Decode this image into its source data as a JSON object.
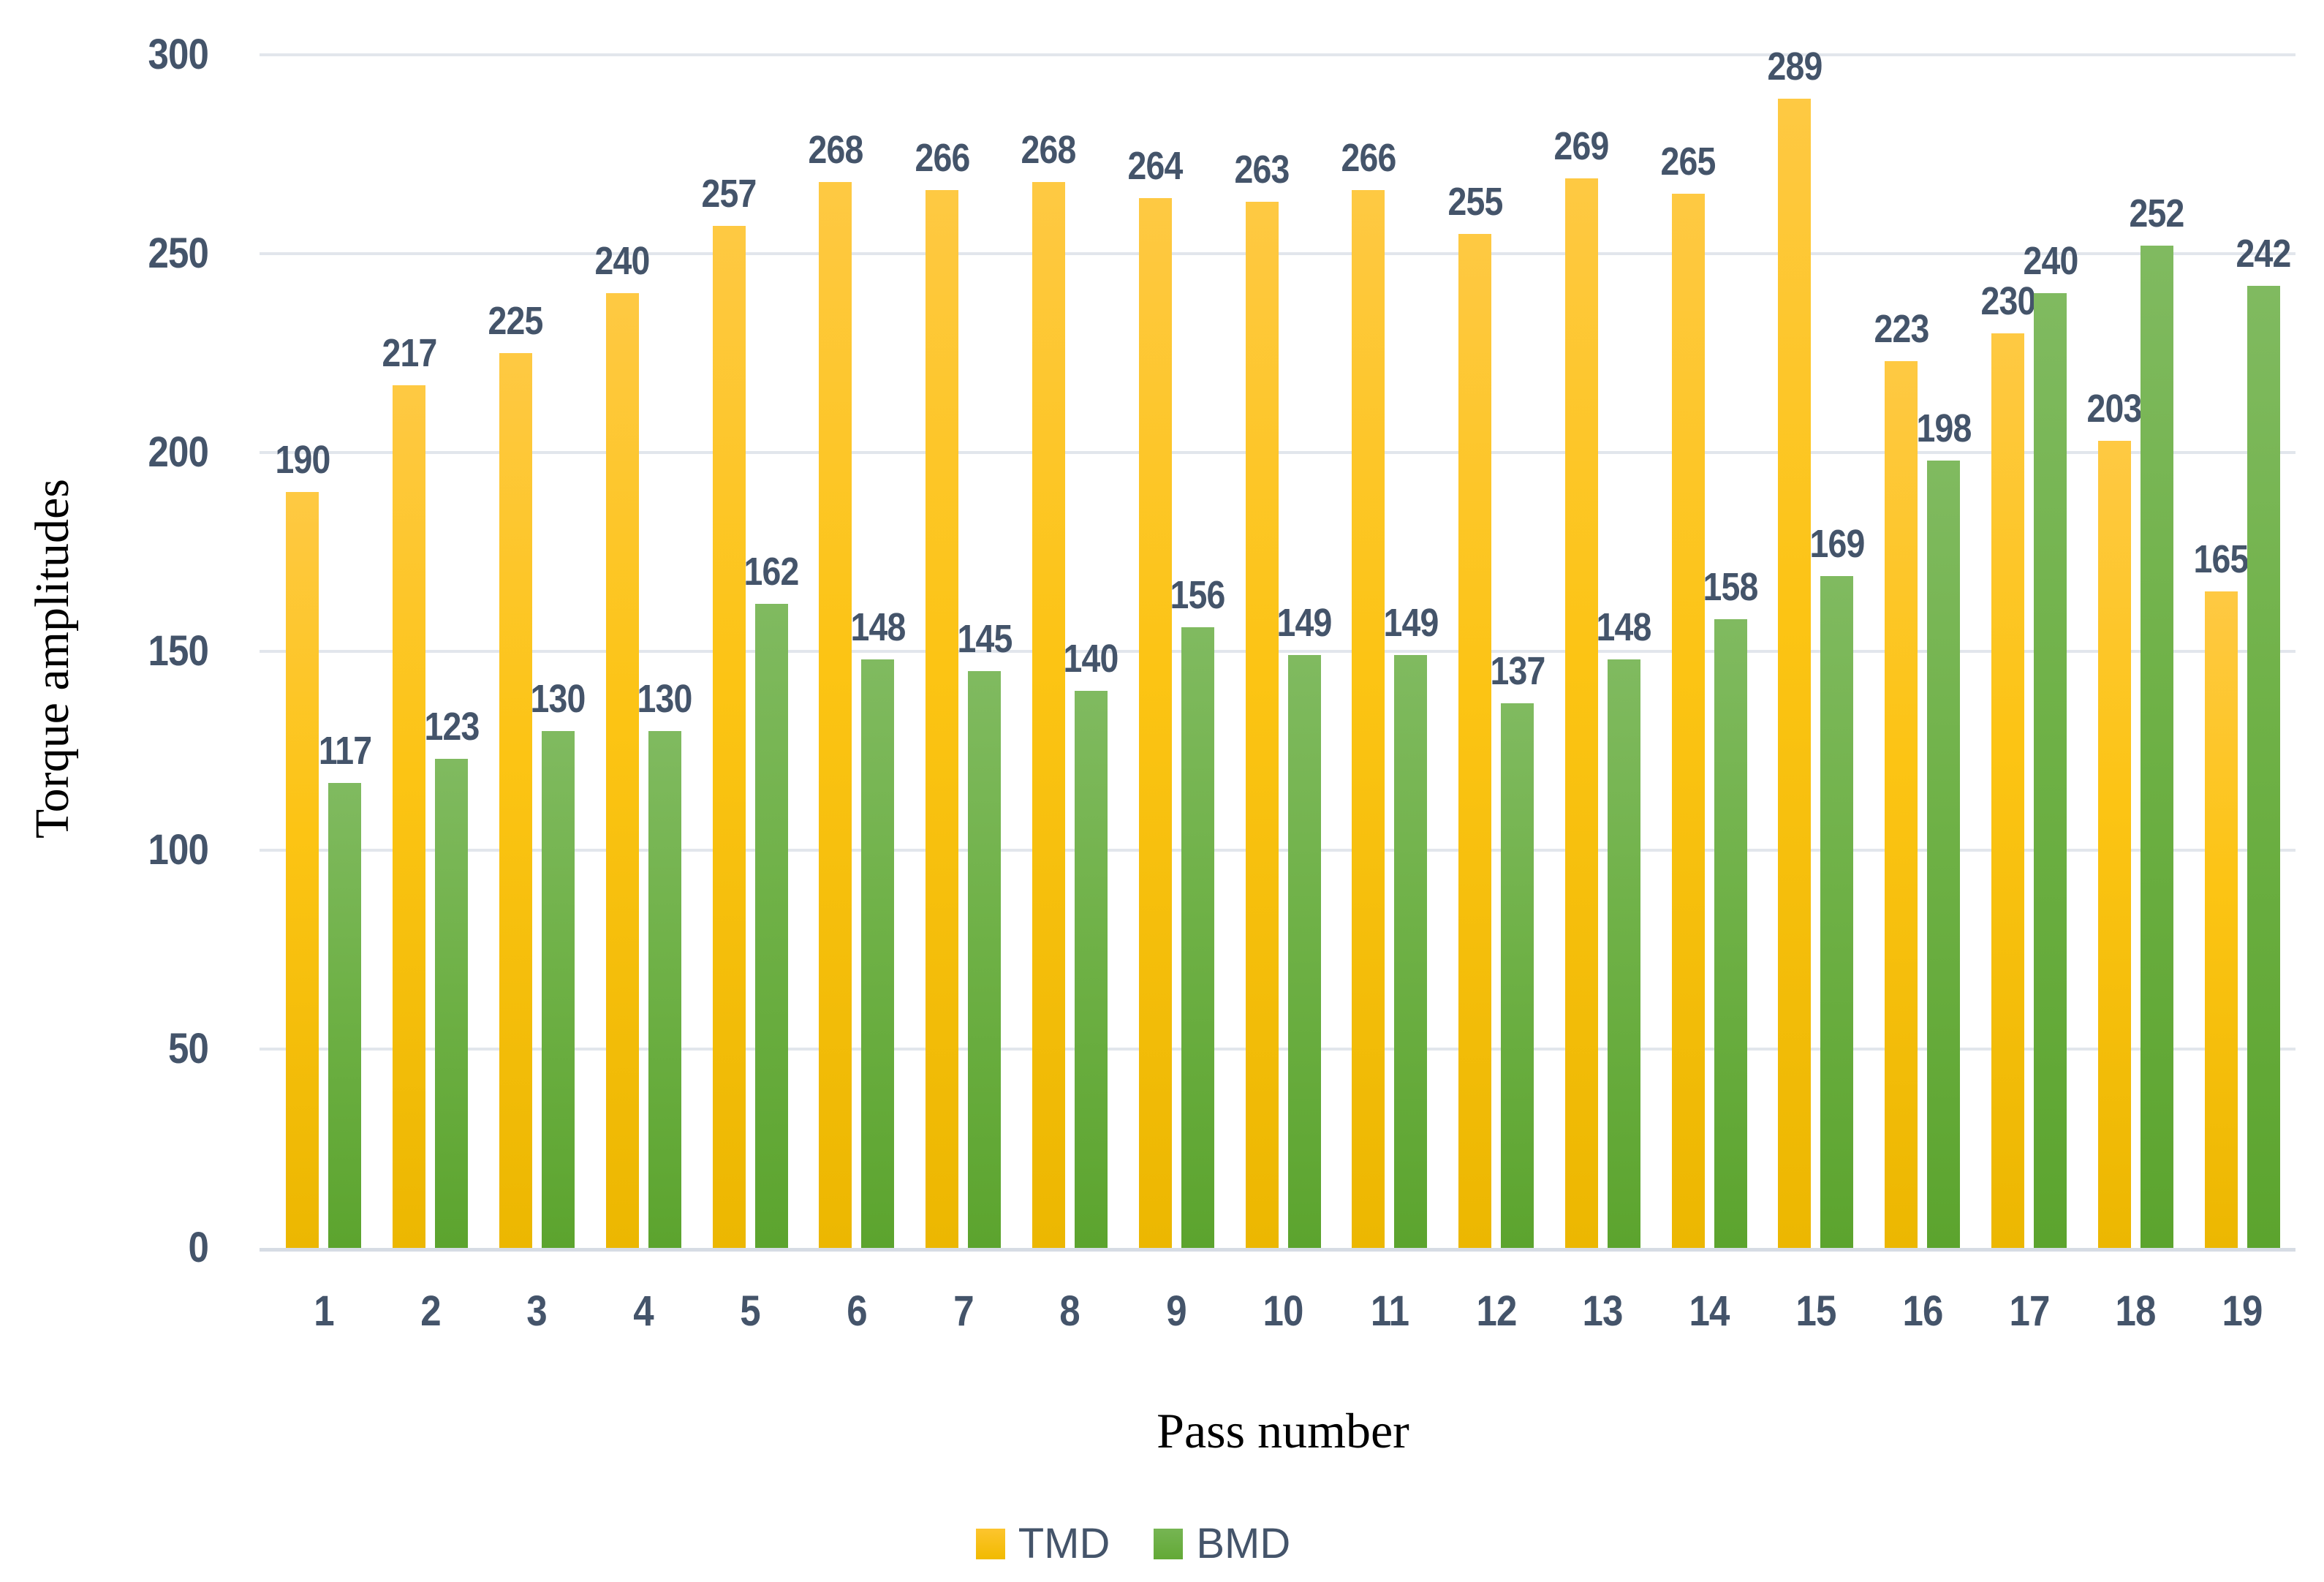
{
  "chart_data": {
    "type": "bar",
    "title": "",
    "xlabel": "Pass number",
    "ylabel": "Torque amplitudes",
    "categories": [
      "1",
      "2",
      "3",
      "4",
      "5",
      "6",
      "7",
      "8",
      "9",
      "10",
      "11",
      "12",
      "13",
      "14",
      "15",
      "16",
      "17",
      "18",
      "19"
    ],
    "series": [
      {
        "name": "TMD",
        "color": "#FCC414",
        "values": [
          190,
          217,
          225,
          240,
          257,
          268,
          266,
          268,
          264,
          263,
          266,
          255,
          269,
          265,
          289,
          223,
          230,
          203,
          165
        ]
      },
      {
        "name": "BMD",
        "color": "#6FB147",
        "values": [
          117,
          123,
          130,
          130,
          162,
          148,
          145,
          140,
          156,
          149,
          149,
          137,
          148,
          158,
          169,
          198,
          240,
          252,
          242
        ]
      }
    ],
    "ylim": [
      0,
      300
    ],
    "yticks": [
      0,
      50,
      100,
      150,
      200,
      250,
      300
    ],
    "grid": true,
    "data_labels": true,
    "legend_position": "bottom"
  },
  "colors": {
    "tmd_bar": "#FCC414",
    "bmd_bar": "#6FB147",
    "value_label_text": "#44546A",
    "tick_label_text": "#44546A",
    "gridline": "#E2E6EC",
    "axis_line": "#D6DCE4",
    "axis_title_text": "#000000",
    "background": "#FFFFFF"
  }
}
